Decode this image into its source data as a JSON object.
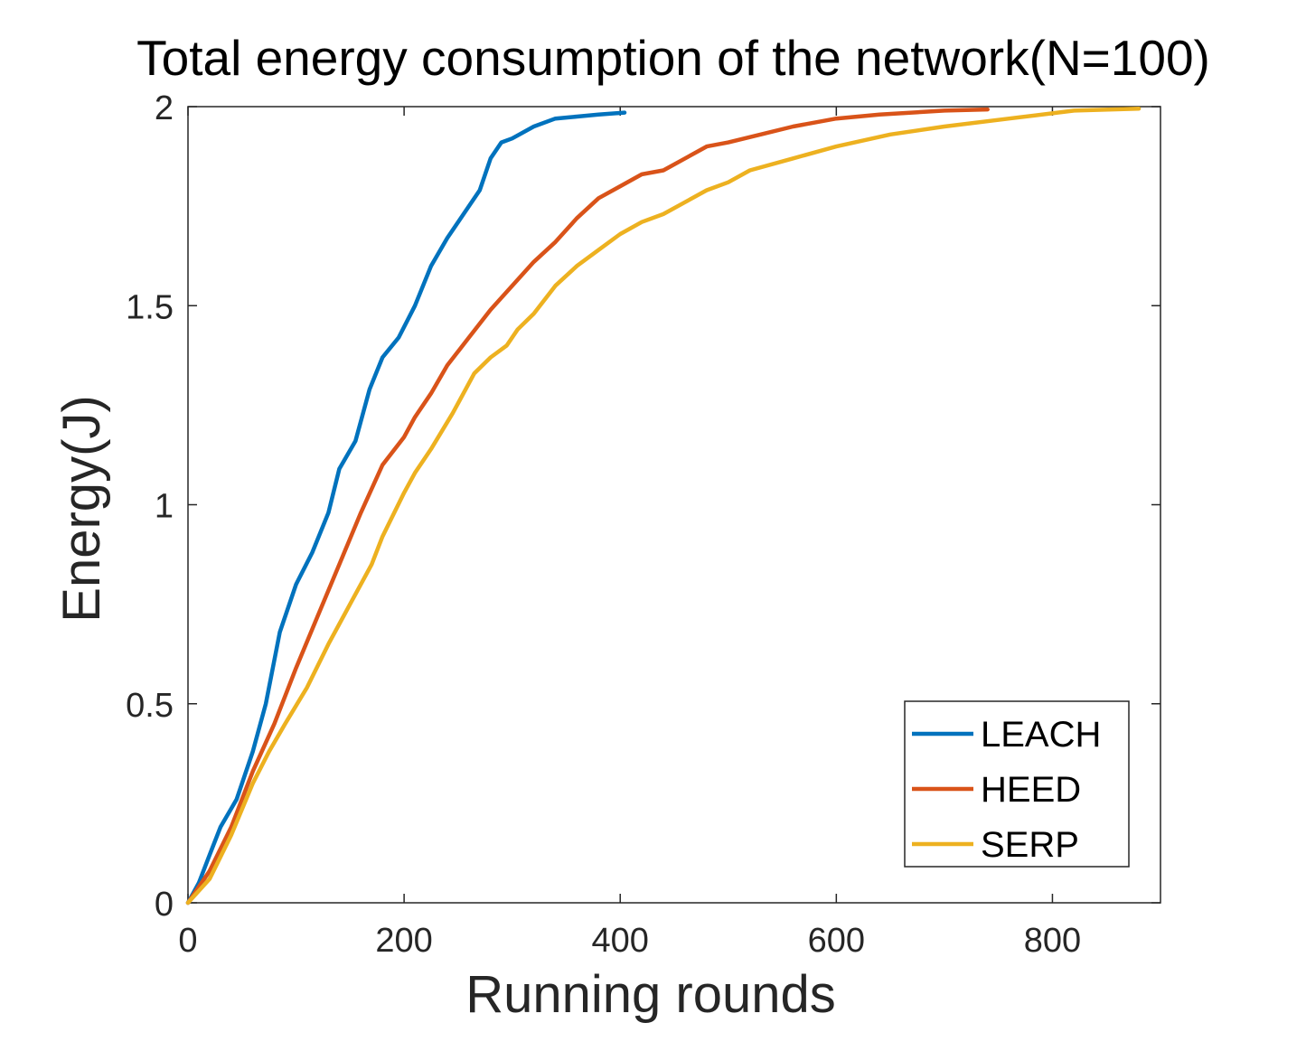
{
  "chart_data": {
    "type": "line",
    "title": "Total energy consumption of the network(N=100)",
    "xlabel": "Running rounds",
    "ylabel": "Energy(J)",
    "xlim": [
      0,
      900
    ],
    "ylim": [
      0,
      2
    ],
    "xticks": [
      0,
      200,
      400,
      600,
      800
    ],
    "xtick_labels": [
      "0",
      "200",
      "400",
      "600",
      "800"
    ],
    "yticks": [
      0,
      0.5,
      1,
      1.5,
      2
    ],
    "ytick_labels": [
      "0",
      "0.5",
      "1",
      "1.5",
      "2"
    ],
    "legend_position": "bottom-right",
    "series": [
      {
        "name": "LEACH",
        "color": "#0072BD",
        "x": [
          0,
          10,
          20,
          30,
          45,
          60,
          72,
          85,
          100,
          115,
          130,
          140,
          155,
          168,
          180,
          195,
          210,
          225,
          240,
          255,
          270,
          280,
          290,
          300,
          320,
          340,
          360,
          380,
          404
        ],
        "y": [
          0,
          0.05,
          0.12,
          0.19,
          0.26,
          0.38,
          0.5,
          0.68,
          0.8,
          0.88,
          0.98,
          1.09,
          1.16,
          1.29,
          1.37,
          1.42,
          1.5,
          1.6,
          1.67,
          1.73,
          1.79,
          1.87,
          1.91,
          1.92,
          1.95,
          1.97,
          1.975,
          1.98,
          1.985
        ]
      },
      {
        "name": "HEED",
        "color": "#D95319",
        "x": [
          0,
          20,
          40,
          60,
          80,
          100,
          120,
          140,
          160,
          180,
          200,
          210,
          225,
          240,
          260,
          280,
          300,
          320,
          340,
          360,
          380,
          400,
          420,
          440,
          460,
          480,
          500,
          530,
          560,
          600,
          640,
          700,
          740
        ],
        "y": [
          0,
          0.08,
          0.19,
          0.33,
          0.45,
          0.59,
          0.72,
          0.85,
          0.98,
          1.1,
          1.17,
          1.22,
          1.28,
          1.35,
          1.42,
          1.49,
          1.55,
          1.61,
          1.66,
          1.72,
          1.77,
          1.8,
          1.83,
          1.84,
          1.87,
          1.9,
          1.91,
          1.93,
          1.95,
          1.97,
          1.98,
          1.99,
          1.993
        ]
      },
      {
        "name": "SERP",
        "color": "#EDB120",
        "x": [
          0,
          20,
          40,
          60,
          75,
          90,
          110,
          130,
          150,
          170,
          180,
          200,
          210,
          225,
          245,
          265,
          280,
          295,
          305,
          320,
          340,
          360,
          380,
          400,
          420,
          440,
          460,
          480,
          500,
          520,
          560,
          600,
          650,
          700,
          760,
          820,
          880
        ],
        "y": [
          0,
          0.06,
          0.17,
          0.3,
          0.38,
          0.45,
          0.54,
          0.65,
          0.75,
          0.85,
          0.92,
          1.03,
          1.08,
          1.14,
          1.23,
          1.33,
          1.37,
          1.4,
          1.44,
          1.48,
          1.55,
          1.6,
          1.64,
          1.68,
          1.71,
          1.73,
          1.76,
          1.79,
          1.81,
          1.84,
          1.87,
          1.9,
          1.93,
          1.95,
          1.97,
          1.99,
          1.995
        ]
      }
    ]
  }
}
